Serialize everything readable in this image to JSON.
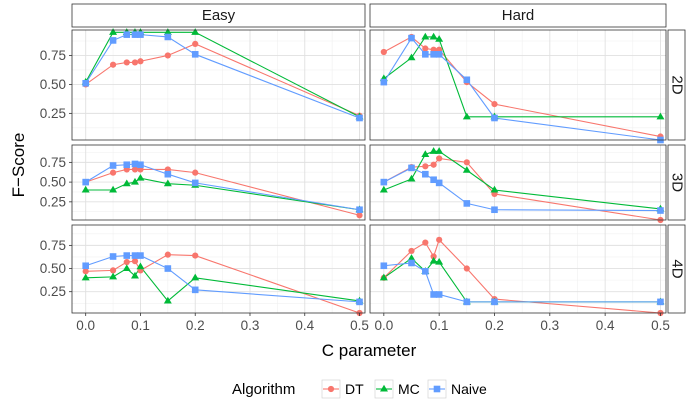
{
  "chart_data": {
    "type": "line",
    "facet_columns": [
      "Easy",
      "Hard"
    ],
    "facet_rows": [
      "2D",
      "3D",
      "4D"
    ],
    "xlabel": "C parameter",
    "ylabel": "F−Score",
    "xlim": [
      0,
      0.5
    ],
    "ylim": [
      0,
      1.0
    ],
    "x_ticks": [
      0.0,
      0.1,
      0.2,
      0.3,
      0.4,
      0.5
    ],
    "x_tick_labels": [
      "0.0",
      "0.1",
      "0.2",
      "0.3",
      "0.4",
      "0.5"
    ],
    "y_ticks": [
      0.25,
      0.5,
      0.75
    ],
    "y_tick_labels": [
      "0.25",
      "0.50",
      "0.75"
    ],
    "grid": true,
    "legend": {
      "title": "Algorithm",
      "position": "bottom",
      "entries": [
        {
          "label": "DT",
          "color": "#F8766D",
          "marker": "circle"
        },
        {
          "label": "MC",
          "color": "#00BA38",
          "marker": "triangle"
        },
        {
          "label": "Naive",
          "color": "#619CFF",
          "marker": "square"
        }
      ]
    },
    "x": [
      0.0,
      0.05,
      0.075,
      0.09,
      0.1,
      0.15,
      0.2,
      0.5
    ],
    "panels": [
      {
        "col": "Easy",
        "row": "2D",
        "series": [
          {
            "name": "DT",
            "values": [
              0.5,
              0.67,
              0.69,
              0.69,
              0.7,
              0.75,
              0.85,
              0.23
            ]
          },
          {
            "name": "MC",
            "values": [
              0.52,
              0.95,
              0.95,
              0.95,
              0.95,
              0.95,
              0.95,
              0.22
            ]
          },
          {
            "name": "Naive",
            "values": [
              0.51,
              0.88,
              0.93,
              0.93,
              0.93,
              0.91,
              0.76,
              0.21
            ]
          }
        ]
      },
      {
        "col": "Hard",
        "row": "2D",
        "series": [
          {
            "name": "DT",
            "values": [
              0.78,
              0.91,
              0.81,
              0.8,
              0.8,
              0.52,
              0.33,
              0.05
            ]
          },
          {
            "name": "MC",
            "values": [
              0.55,
              0.73,
              0.91,
              0.91,
              0.89,
              0.22,
              0.22,
              0.22
            ]
          },
          {
            "name": "Naive",
            "values": [
              0.52,
              0.9,
              0.76,
              0.76,
              0.76,
              0.54,
              0.21,
              0.02
            ]
          }
        ]
      },
      {
        "col": "Easy",
        "row": "3D",
        "series": [
          {
            "name": "DT",
            "values": [
              0.5,
              0.62,
              0.66,
              0.66,
              0.66,
              0.66,
              0.62,
              0.08
            ]
          },
          {
            "name": "MC",
            "values": [
              0.4,
              0.4,
              0.48,
              0.5,
              0.55,
              0.48,
              0.46,
              0.15
            ]
          },
          {
            "name": "Naive",
            "values": [
              0.5,
              0.71,
              0.72,
              0.73,
              0.72,
              0.6,
              0.49,
              0.15
            ]
          }
        ]
      },
      {
        "col": "Hard",
        "row": "3D",
        "series": [
          {
            "name": "DT",
            "values": [
              0.5,
              0.69,
              0.7,
              0.72,
              0.8,
              0.75,
              0.35,
              0.02
            ]
          },
          {
            "name": "MC",
            "values": [
              0.4,
              0.54,
              0.85,
              0.89,
              0.89,
              0.65,
              0.4,
              0.16
            ]
          },
          {
            "name": "Naive",
            "values": [
              0.5,
              0.68,
              0.6,
              0.53,
              0.49,
              0.23,
              0.15,
              0.14
            ]
          }
        ]
      },
      {
        "col": "Easy",
        "row": "4D",
        "series": [
          {
            "name": "DT",
            "values": [
              0.47,
              0.48,
              0.57,
              0.58,
              0.48,
              0.65,
              0.64,
              0.02
            ]
          },
          {
            "name": "MC",
            "values": [
              0.4,
              0.41,
              0.5,
              0.42,
              0.52,
              0.15,
              0.4,
              0.15
            ]
          },
          {
            "name": "Naive",
            "values": [
              0.53,
              0.63,
              0.64,
              0.64,
              0.64,
              0.5,
              0.27,
              0.14
            ]
          }
        ]
      },
      {
        "col": "Hard",
        "row": "4D",
        "series": [
          {
            "name": "DT",
            "values": [
              0.4,
              0.69,
              0.78,
              0.63,
              0.81,
              0.5,
              0.17,
              0.02
            ]
          },
          {
            "name": "MC",
            "values": [
              0.4,
              0.61,
              0.47,
              0.58,
              0.57,
              0.14,
              0.14,
              0.14
            ]
          },
          {
            "name": "Naive",
            "values": [
              0.53,
              0.56,
              0.47,
              0.22,
              0.22,
              0.14,
              0.14,
              0.14
            ]
          }
        ]
      }
    ]
  }
}
